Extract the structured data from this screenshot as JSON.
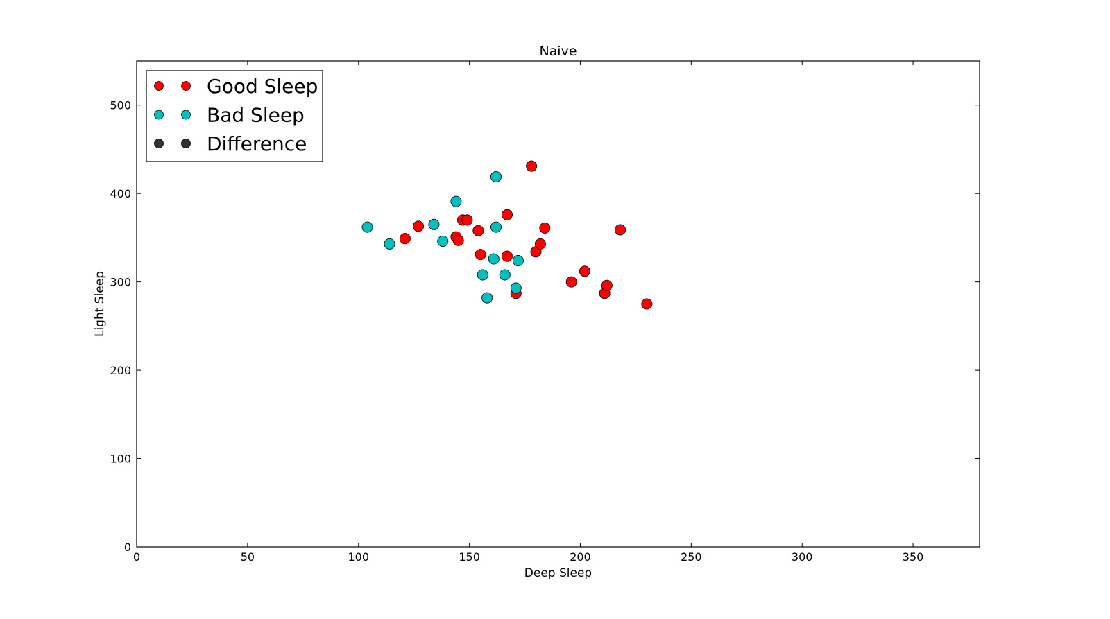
{
  "chart_data": {
    "type": "scatter",
    "title": "Naive",
    "xlabel": "Deep Sleep",
    "ylabel": "Light Sleep",
    "xlim": [
      0,
      380
    ],
    "ylim": [
      0,
      550
    ],
    "xticks": [
      0,
      50,
      100,
      150,
      200,
      250,
      300,
      350
    ],
    "yticks": [
      0,
      100,
      200,
      300,
      400,
      500
    ],
    "xtick_labels": [
      "0",
      "50",
      "100",
      "150",
      "200",
      "250",
      "300",
      "350"
    ],
    "ytick_labels": [
      "0",
      "100",
      "200",
      "300",
      "400",
      "500"
    ],
    "grid": false,
    "legend_position": "upper-left",
    "series": [
      {
        "name": "Good Sleep",
        "color": "#ff0000",
        "points": [
          [
            121,
            349
          ],
          [
            127,
            363
          ],
          [
            144,
            351
          ],
          [
            145,
            347
          ],
          [
            147,
            370
          ],
          [
            149,
            370
          ],
          [
            154,
            358
          ],
          [
            155,
            331
          ],
          [
            167,
            376
          ],
          [
            167,
            329
          ],
          [
            171,
            287
          ],
          [
            178,
            431
          ],
          [
            180,
            334
          ],
          [
            182,
            343
          ],
          [
            184,
            361
          ],
          [
            196,
            300
          ],
          [
            202,
            312
          ],
          [
            211,
            287
          ],
          [
            212,
            296
          ],
          [
            218,
            359
          ],
          [
            230,
            275
          ]
        ]
      },
      {
        "name": "Bad Sleep",
        "color": "#00bfbf",
        "points": [
          [
            104,
            362
          ],
          [
            114,
            343
          ],
          [
            134,
            365
          ],
          [
            138,
            346
          ],
          [
            144,
            391
          ],
          [
            156,
            308
          ],
          [
            158,
            282
          ],
          [
            161,
            326
          ],
          [
            162,
            419
          ],
          [
            162,
            362
          ],
          [
            166,
            308
          ],
          [
            171,
            293
          ],
          [
            172,
            324
          ]
        ]
      },
      {
        "name": "Difference",
        "color": "#333333",
        "points": []
      }
    ]
  }
}
